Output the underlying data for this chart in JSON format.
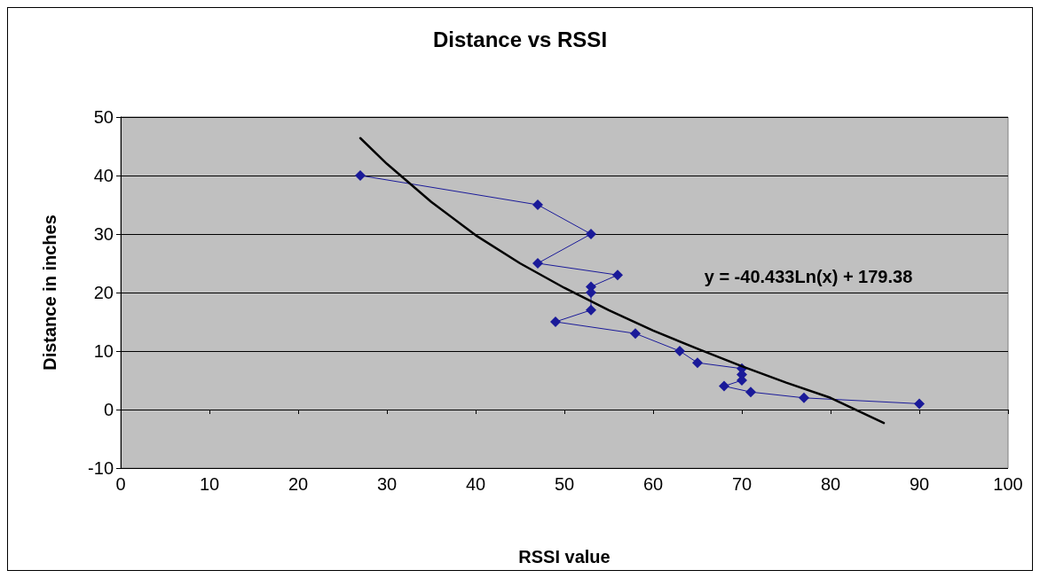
{
  "chart_data": {
    "type": "line",
    "title": "Distance vs RSSI",
    "xlabel": "RSSI value",
    "ylabel": "Distance in inches",
    "xlim": [
      0,
      100
    ],
    "xticks": [
      0,
      10,
      20,
      30,
      40,
      50,
      60,
      70,
      80,
      90,
      100
    ],
    "ylim": [
      -10,
      50
    ],
    "yticks": [
      -10,
      0,
      10,
      20,
      30,
      40,
      50
    ],
    "grid": "y",
    "marker": "diamond",
    "line_style": "solid",
    "series": [
      {
        "color": "#1a1a99",
        "x": [
          27,
          47,
          53,
          47,
          56,
          53,
          53,
          53,
          49,
          58,
          63,
          65,
          70,
          70,
          70,
          68,
          71,
          77,
          90
        ],
        "values": [
          40,
          35,
          30,
          25,
          23,
          21,
          20,
          17,
          15,
          13,
          10,
          8,
          7,
          6,
          5,
          4,
          3,
          2,
          1
        ]
      },
      {
        "color": "#000000",
        "marker": "none",
        "x": [
          27,
          30,
          35,
          40,
          45,
          50,
          55,
          60,
          65,
          70,
          75,
          80,
          86
        ],
        "values": [
          46.4,
          42,
          35.5,
          29.8,
          25,
          20.8,
          17,
          13.5,
          10.4,
          7.4,
          4.6,
          2,
          -2.3
        ]
      }
    ],
    "annotations": [
      "y = -40.433Ln(x) + 179.38"
    ]
  }
}
